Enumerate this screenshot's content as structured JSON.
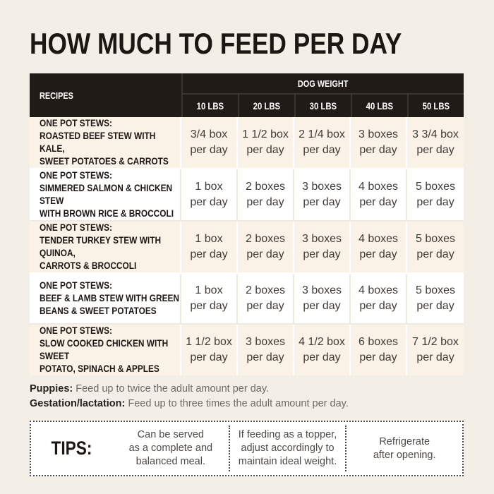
{
  "title": "HOW MUCH TO FEED PER DAY",
  "table": {
    "recipes_header": "RECIPES",
    "dog_weight_header": "DOG WEIGHT",
    "weight_columns": [
      "10 LBS",
      "20 LBS",
      "30 LBS",
      "40 LBS",
      "50 LBS"
    ],
    "rows": [
      {
        "prefix": "ONE POT STEWS:",
        "name": "ROASTED BEEF STEW WITH KALE,\nSWEET POTATOES & CARROTS",
        "values": [
          "3/4 box\nper day",
          "1 1/2 box\nper day",
          "2 1/4 box\nper day",
          "3 boxes\nper day",
          "3 3/4 box\nper day"
        ]
      },
      {
        "prefix": "ONE POT STEWS:",
        "name": "SIMMERED SALMON & CHICKEN STEW\nWITH BROWN RICE & BROCCOLI",
        "values": [
          "1 box\nper day",
          "2 boxes\nper day",
          "3 boxes\nper day",
          "4 boxes\nper day",
          "5 boxes\nper day"
        ]
      },
      {
        "prefix": "ONE POT STEWS:",
        "name": "TENDER TURKEY STEW WITH QUINOA,\nCARROTS & BROCCOLI",
        "values": [
          "1 box\nper day",
          "2 boxes\nper day",
          "3 boxes\nper day",
          "4 boxes\nper day",
          "5 boxes\nper day"
        ]
      },
      {
        "prefix": "ONE POT STEWS:",
        "name": "BEEF & LAMB STEW WITH GREEN\nBEANS & SWEET POTATOES",
        "values": [
          "1 box\nper day",
          "2 boxes\nper day",
          "3 boxes\nper day",
          "4 boxes\nper day",
          "5 boxes\nper day"
        ]
      },
      {
        "prefix": "ONE POT STEWS:",
        "name": "SLOW COOKED CHICKEN WITH SWEET\nPOTATO, SPINACH & APPLES",
        "values": [
          "1 1/2 box\nper day",
          "3 boxes\nper day",
          "4 1/2 box\nper day",
          "6 boxes\nper day",
          "7 1/2 box\nper day"
        ]
      }
    ]
  },
  "notes": [
    {
      "label": "Puppies:",
      "text": "Feed up to twice the adult amount per day."
    },
    {
      "label": "Gestation/lactation:",
      "text": "Feed up to three times the adult amount per day."
    }
  ],
  "tips": {
    "label": "TIPS:",
    "items": [
      "Can be served\nas a complete and\nbalanced meal.",
      "If feeding as a topper,\nadjust accordingly to\nmaintain ideal weight.",
      "Refrigerate\nafter opening."
    ]
  },
  "colors": {
    "page_background": "#F3EEE6",
    "header_background": "#211B17",
    "header_divider": "#3B342F",
    "row_cream": "#FAF1E7",
    "row_white": "#FFFFFF",
    "title_text": "#1C1713",
    "value_text": "#403C38",
    "note_text": "#6F6A64"
  }
}
